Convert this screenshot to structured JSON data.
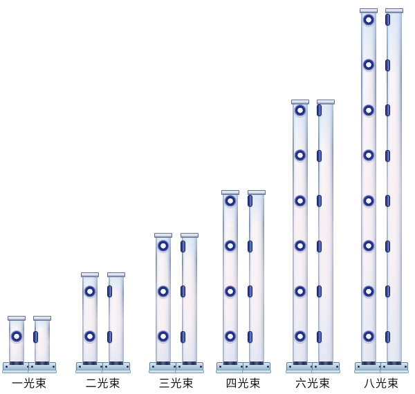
{
  "lineup": {
    "groups": [
      {
        "label": "一光束",
        "beams": 1
      },
      {
        "label": "二光束",
        "beams": 2
      },
      {
        "label": "三光束",
        "beams": 3
      },
      {
        "label": "四光束",
        "beams": 4
      },
      {
        "label": "六光束",
        "beams": 6
      },
      {
        "label": "八光束",
        "beams": 8
      }
    ],
    "colors": {
      "background": "#ffffff",
      "lens_ring": "#232f7c",
      "lens_center": "#f3f7fe",
      "lens_halo": "#93a1d6",
      "side_tab": "#3a4da0",
      "post_edge": "#808aa9",
      "post_face": "#f5f7fc",
      "post_face_pink": "#faf3f5",
      "bottom_band": "#222c4c",
      "base_plate": "#a3c1d8",
      "label_text": "#111111"
    }
  }
}
